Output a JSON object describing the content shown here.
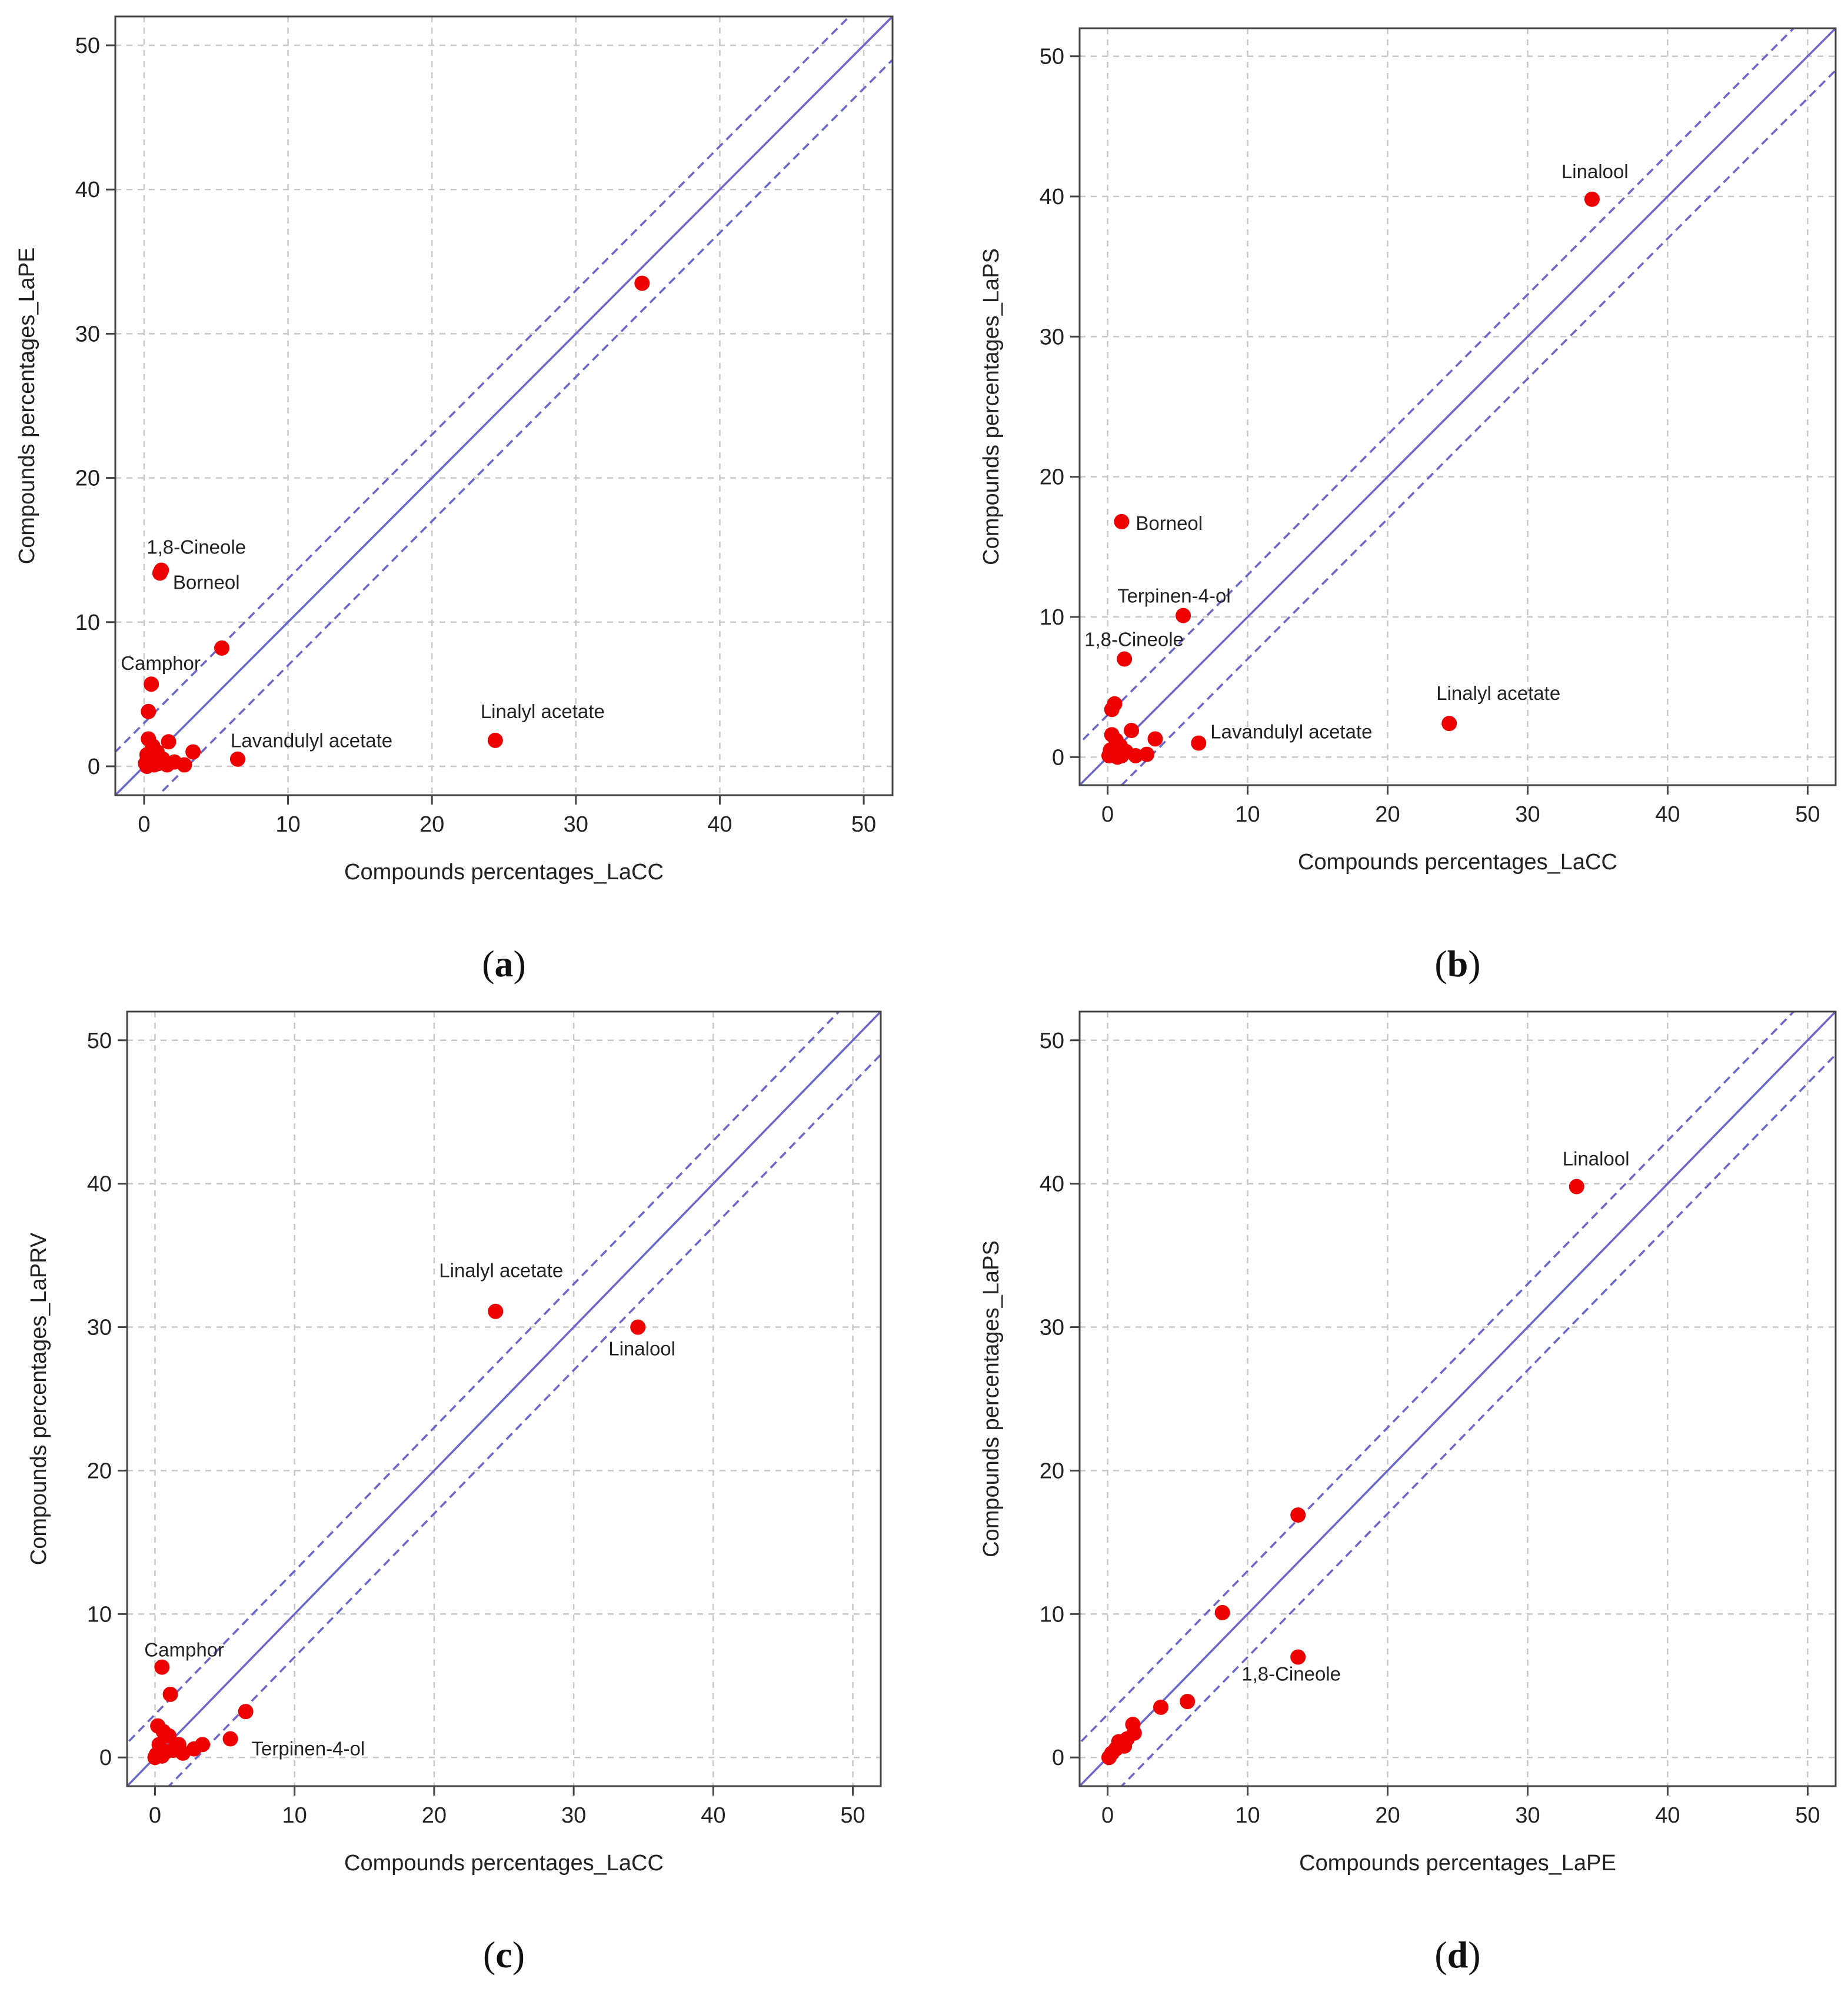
{
  "colors": {
    "point": "#ee0000",
    "line": "#6a66cc",
    "grid": "#c8c8c8",
    "frame": "#444444",
    "text": "#222222"
  },
  "chart_data": [
    {
      "id": "a",
      "type": "scatter",
      "panel_label": "a",
      "xlabel": "Compounds percentages_LaCC",
      "ylabel": "Compounds percentages_LaPE",
      "xlim": [
        -2,
        52
      ],
      "ylim": [
        -2,
        52
      ],
      "xticks": [
        0,
        10,
        20,
        30,
        40,
        50
      ],
      "yticks": [
        0,
        10,
        20,
        30,
        40,
        50
      ],
      "grid": true,
      "reference_lines": {
        "identity": 1,
        "band_offset": 3
      },
      "points": [
        {
          "x": 34.6,
          "y": 33.5,
          "label": ""
        },
        {
          "x": 24.4,
          "y": 1.8,
          "label": "Linalyl acetate"
        },
        {
          "x": 1.2,
          "y": 13.6,
          "label": "1,8-Cineole"
        },
        {
          "x": 1.1,
          "y": 13.4,
          "label": "Borneol"
        },
        {
          "x": 5.4,
          "y": 8.2,
          "label": ""
        },
        {
          "x": 0.5,
          "y": 5.7,
          "label": "Camphor"
        },
        {
          "x": 0.3,
          "y": 3.8,
          "label": ""
        },
        {
          "x": 6.5,
          "y": 0.5,
          "label": "Lavandulyl acetate"
        },
        {
          "x": 3.4,
          "y": 1.0,
          "label": ""
        },
        {
          "x": 1.7,
          "y": 1.7,
          "label": ""
        },
        {
          "x": 2.8,
          "y": 0.1,
          "label": ""
        },
        {
          "x": 0.3,
          "y": 1.9,
          "label": ""
        },
        {
          "x": 0.6,
          "y": 1.4,
          "label": ""
        },
        {
          "x": 0.9,
          "y": 1.0,
          "label": ""
        },
        {
          "x": 0.2,
          "y": 0.8,
          "label": ""
        },
        {
          "x": 1.3,
          "y": 0.5,
          "label": ""
        },
        {
          "x": 0.1,
          "y": 0.2,
          "label": ""
        },
        {
          "x": 0.4,
          "y": 0.3,
          "label": ""
        },
        {
          "x": 0.7,
          "y": 0.1,
          "label": ""
        },
        {
          "x": 1.0,
          "y": 0.2,
          "label": ""
        },
        {
          "x": 2.1,
          "y": 0.3,
          "label": ""
        },
        {
          "x": 0.2,
          "y": 0.0,
          "label": ""
        },
        {
          "x": 1.6,
          "y": 0.1,
          "label": ""
        },
        {
          "x": 0.5,
          "y": 0.6,
          "label": ""
        }
      ]
    },
    {
      "id": "b",
      "type": "scatter",
      "panel_label": "b",
      "xlabel": "Compounds percentages_LaCC",
      "ylabel": "Compounds percentages_LaPS",
      "xlim": [
        -2,
        52
      ],
      "ylim": [
        -2,
        52
      ],
      "xticks": [
        0,
        10,
        20,
        30,
        40,
        50
      ],
      "yticks": [
        0,
        10,
        20,
        30,
        40,
        50
      ],
      "grid": true,
      "reference_lines": {
        "identity": 1,
        "band_offset": 3
      },
      "points": [
        {
          "x": 34.6,
          "y": 39.8,
          "label": "Linalool"
        },
        {
          "x": 24.4,
          "y": 2.4,
          "label": "Linalyl acetate"
        },
        {
          "x": 1.0,
          "y": 16.8,
          "label": "Borneol"
        },
        {
          "x": 5.4,
          "y": 10.1,
          "label": "Terpinen-4-ol"
        },
        {
          "x": 1.2,
          "y": 7.0,
          "label": "1,8-Cineole"
        },
        {
          "x": 6.5,
          "y": 1.0,
          "label": "Lavandulyl acetate"
        },
        {
          "x": 0.5,
          "y": 3.8,
          "label": ""
        },
        {
          "x": 0.3,
          "y": 3.4,
          "label": ""
        },
        {
          "x": 1.7,
          "y": 1.9,
          "label": ""
        },
        {
          "x": 3.4,
          "y": 1.3,
          "label": ""
        },
        {
          "x": 2.8,
          "y": 0.2,
          "label": ""
        },
        {
          "x": 0.3,
          "y": 1.6,
          "label": ""
        },
        {
          "x": 0.6,
          "y": 1.2,
          "label": ""
        },
        {
          "x": 0.9,
          "y": 0.8,
          "label": ""
        },
        {
          "x": 0.2,
          "y": 0.5,
          "label": ""
        },
        {
          "x": 1.3,
          "y": 0.4,
          "label": ""
        },
        {
          "x": 0.1,
          "y": 0.1,
          "label": ""
        },
        {
          "x": 0.5,
          "y": 0.2,
          "label": ""
        },
        {
          "x": 1.0,
          "y": 0.1,
          "label": ""
        },
        {
          "x": 2.0,
          "y": 0.1,
          "label": ""
        },
        {
          "x": 0.7,
          "y": 0.0,
          "label": ""
        }
      ]
    },
    {
      "id": "c",
      "type": "scatter",
      "panel_label": "c",
      "xlabel": "Compounds percentages_LaCC",
      "ylabel": "Compounds percentages_LaPRV",
      "xlim": [
        -2,
        52
      ],
      "ylim": [
        -2,
        52
      ],
      "xticks": [
        0,
        10,
        20,
        30,
        40,
        50
      ],
      "yticks": [
        0,
        10,
        20,
        30,
        40,
        50
      ],
      "grid": true,
      "reference_lines": {
        "identity": 1,
        "band_offset": 3
      },
      "points": [
        {
          "x": 24.4,
          "y": 31.1,
          "label": "Linalyl acetate"
        },
        {
          "x": 34.6,
          "y": 30.0,
          "label": "Linalool"
        },
        {
          "x": 0.5,
          "y": 6.3,
          "label": "Camphor"
        },
        {
          "x": 5.4,
          "y": 1.3,
          "label": "Terpinen-4-ol"
        },
        {
          "x": 1.1,
          "y": 4.4,
          "label": ""
        },
        {
          "x": 6.5,
          "y": 3.2,
          "label": ""
        },
        {
          "x": 0.2,
          "y": 2.2,
          "label": ""
        },
        {
          "x": 0.6,
          "y": 1.8,
          "label": ""
        },
        {
          "x": 1.0,
          "y": 1.5,
          "label": ""
        },
        {
          "x": 1.7,
          "y": 0.9,
          "label": ""
        },
        {
          "x": 3.4,
          "y": 0.9,
          "label": ""
        },
        {
          "x": 2.8,
          "y": 0.6,
          "label": ""
        },
        {
          "x": 0.3,
          "y": 0.9,
          "label": ""
        },
        {
          "x": 1.3,
          "y": 0.5,
          "label": ""
        },
        {
          "x": 0.1,
          "y": 0.2,
          "label": ""
        },
        {
          "x": 0.5,
          "y": 0.1,
          "label": ""
        },
        {
          "x": 2.0,
          "y": 0.3,
          "label": ""
        },
        {
          "x": 0.8,
          "y": 0.4,
          "label": ""
        },
        {
          "x": 0.0,
          "y": 0.0,
          "label": ""
        }
      ]
    },
    {
      "id": "d",
      "type": "scatter",
      "panel_label": "d",
      "xlabel": "Compounds percentages_LaPE",
      "ylabel": "Compounds percentages_LaPS",
      "xlim": [
        -2,
        52
      ],
      "ylim": [
        -2,
        52
      ],
      "xticks": [
        0,
        10,
        20,
        30,
        40,
        50
      ],
      "yticks": [
        0,
        10,
        20,
        30,
        40,
        50
      ],
      "grid": true,
      "reference_lines": {
        "identity": 1,
        "band_offset": 3
      },
      "points": [
        {
          "x": 33.5,
          "y": 39.8,
          "label": "Linalool"
        },
        {
          "x": 13.6,
          "y": 7.0,
          "label": "1,8-Cineole"
        },
        {
          "x": 13.6,
          "y": 16.9,
          "label": ""
        },
        {
          "x": 8.2,
          "y": 10.1,
          "label": ""
        },
        {
          "x": 5.7,
          "y": 3.9,
          "label": ""
        },
        {
          "x": 3.8,
          "y": 3.5,
          "label": ""
        },
        {
          "x": 1.8,
          "y": 2.3,
          "label": ""
        },
        {
          "x": 1.9,
          "y": 1.7,
          "label": ""
        },
        {
          "x": 1.4,
          "y": 1.3,
          "label": ""
        },
        {
          "x": 1.0,
          "y": 0.9,
          "label": ""
        },
        {
          "x": 0.6,
          "y": 0.6,
          "label": ""
        },
        {
          "x": 0.3,
          "y": 0.3,
          "label": ""
        },
        {
          "x": 0.1,
          "y": 0.0,
          "label": ""
        },
        {
          "x": 0.8,
          "y": 1.1,
          "label": ""
        },
        {
          "x": 1.2,
          "y": 0.8,
          "label": ""
        }
      ]
    }
  ]
}
